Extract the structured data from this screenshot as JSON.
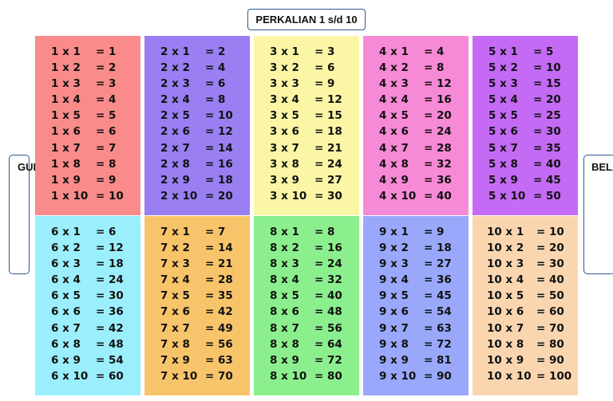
{
  "title": "PERKALIAN 1 s/d 10",
  "left_label": "GUNTUR RAMDHAN",
  "right_label": "BELA",
  "tables": [
    {
      "bg": "#f98b8b",
      "rows": [
        [
          "1 x 1",
          "= 1"
        ],
        [
          "1 x 2",
          "= 2"
        ],
        [
          "1 x 3",
          "= 3"
        ],
        [
          "1 x 4",
          "= 4"
        ],
        [
          "1 x 5",
          "= 5"
        ],
        [
          "1 x 6",
          "= 6"
        ],
        [
          "1 x 7",
          "= 7"
        ],
        [
          "1 x 8",
          "= 8"
        ],
        [
          "1 x 9",
          "= 9"
        ],
        [
          "1 x 10",
          "= 10"
        ]
      ]
    },
    {
      "bg": "#9a7ff2",
      "rows": [
        [
          "2 x 1",
          "= 2"
        ],
        [
          "2 x 2",
          "= 4"
        ],
        [
          "2 x 3",
          "= 6"
        ],
        [
          "2 x 4",
          "= 8"
        ],
        [
          "2 x 5",
          "= 10"
        ],
        [
          "2 x 6",
          "= 12"
        ],
        [
          "2 x 7",
          "= 14"
        ],
        [
          "2 x 8",
          "= 16"
        ],
        [
          "2 x 9",
          "= 18"
        ],
        [
          "2 x 10",
          "= 20"
        ]
      ]
    },
    {
      "bg": "#faf6a6",
      "rows": [
        [
          "3 x 1",
          "= 3"
        ],
        [
          "3 x 2",
          "= 6"
        ],
        [
          "3 x 3",
          "= 9"
        ],
        [
          "3 x 4",
          "= 12"
        ],
        [
          "3 x 5",
          "= 15"
        ],
        [
          "3 x 6",
          "= 18"
        ],
        [
          "3 x 7",
          "= 21"
        ],
        [
          "3 x 8",
          "= 24"
        ],
        [
          "3 x 9",
          "= 27"
        ],
        [
          "3 x 10",
          "= 30"
        ]
      ]
    },
    {
      "bg": "#f78ad6",
      "rows": [
        [
          "4 x 1",
          "= 4"
        ],
        [
          "4 x 2",
          "= 8"
        ],
        [
          "4 x 3",
          "= 12"
        ],
        [
          "4 x 4",
          "= 16"
        ],
        [
          "4 x 5",
          "= 20"
        ],
        [
          "4 x 6",
          "= 24"
        ],
        [
          "4 x 7",
          "= 28"
        ],
        [
          "4 x 8",
          "= 32"
        ],
        [
          "4 x 9",
          "= 36"
        ],
        [
          "4 x 10",
          "= 40"
        ]
      ]
    },
    {
      "bg": "#c56af4",
      "rows": [
        [
          "5 x 1",
          "= 5"
        ],
        [
          "5 x 2",
          "= 10"
        ],
        [
          "5 x 3",
          "= 15"
        ],
        [
          "5 x 4",
          "= 20"
        ],
        [
          "5 x 5",
          "= 25"
        ],
        [
          "5 x 6",
          "= 30"
        ],
        [
          "5 x 7",
          "= 35"
        ],
        [
          "5 x 8",
          "= 40"
        ],
        [
          "5 x 9",
          "= 45"
        ],
        [
          "5 x 10",
          "= 50"
        ]
      ]
    },
    {
      "bg": "#9beffc",
      "rows": [
        [
          "6 x 1",
          "= 6"
        ],
        [
          "6 x 2",
          "= 12"
        ],
        [
          "6 x 3",
          "= 18"
        ],
        [
          "6 x 4",
          "= 24"
        ],
        [
          "6 x 5",
          "= 30"
        ],
        [
          "6 x 6",
          "= 36"
        ],
        [
          "6 x 7",
          "= 42"
        ],
        [
          "6 x 8",
          "= 48"
        ],
        [
          "6 x 9",
          "= 54"
        ],
        [
          "6 x 10",
          "= 60"
        ]
      ]
    },
    {
      "bg": "#f7c46a",
      "rows": [
        [
          "7 x 1",
          "= 7"
        ],
        [
          "7 x 2",
          "= 14"
        ],
        [
          "7 x 3",
          "= 21"
        ],
        [
          "7 x 4",
          "= 28"
        ],
        [
          "7 x 5",
          "= 35"
        ],
        [
          "7 x 6",
          "= 42"
        ],
        [
          "7 x 7",
          "= 49"
        ],
        [
          "7 x 8",
          "= 56"
        ],
        [
          "7 x 9",
          "= 63"
        ],
        [
          "7 x 10",
          "= 70"
        ]
      ]
    },
    {
      "bg": "#8bef8d",
      "rows": [
        [
          "8 x 1",
          "= 8"
        ],
        [
          "8 x 2",
          "= 16"
        ],
        [
          "8 x 3",
          "= 24"
        ],
        [
          "8 x 4",
          "= 32"
        ],
        [
          "8 x 5",
          "= 40"
        ],
        [
          "8 x 6",
          "= 48"
        ],
        [
          "8 x 7",
          "= 56"
        ],
        [
          "8 x 8",
          "= 64"
        ],
        [
          "8 x 9",
          "= 72"
        ],
        [
          "8 x 10",
          "= 80"
        ]
      ]
    },
    {
      "bg": "#9aa8fb",
      "rows": [
        [
          "9 x 1",
          "= 9"
        ],
        [
          "9 x 2",
          "= 18"
        ],
        [
          "9 x 3",
          "= 27"
        ],
        [
          "9 x 4",
          "= 36"
        ],
        [
          "9 x 5",
          "= 45"
        ],
        [
          "9 x 6",
          "= 54"
        ],
        [
          "9 x 7",
          "= 63"
        ],
        [
          "9 x 8",
          "= 72"
        ],
        [
          "9 x 9",
          "= 81"
        ],
        [
          "9 x 10",
          "= 90"
        ]
      ]
    },
    {
      "bg": "#fad6b0",
      "rows": [
        [
          "10 x 1",
          "= 10"
        ],
        [
          "10 x 2",
          "= 20"
        ],
        [
          "10 x 3",
          "= 30"
        ],
        [
          "10 x 4",
          "= 40"
        ],
        [
          "10 x 5",
          "= 50"
        ],
        [
          "10 x 6",
          "= 60"
        ],
        [
          "10 x 7",
          "= 70"
        ],
        [
          "10 x 8",
          "= 80"
        ],
        [
          "10 x 9",
          "= 90"
        ],
        [
          "10 x 10",
          "= 100"
        ]
      ]
    }
  ]
}
